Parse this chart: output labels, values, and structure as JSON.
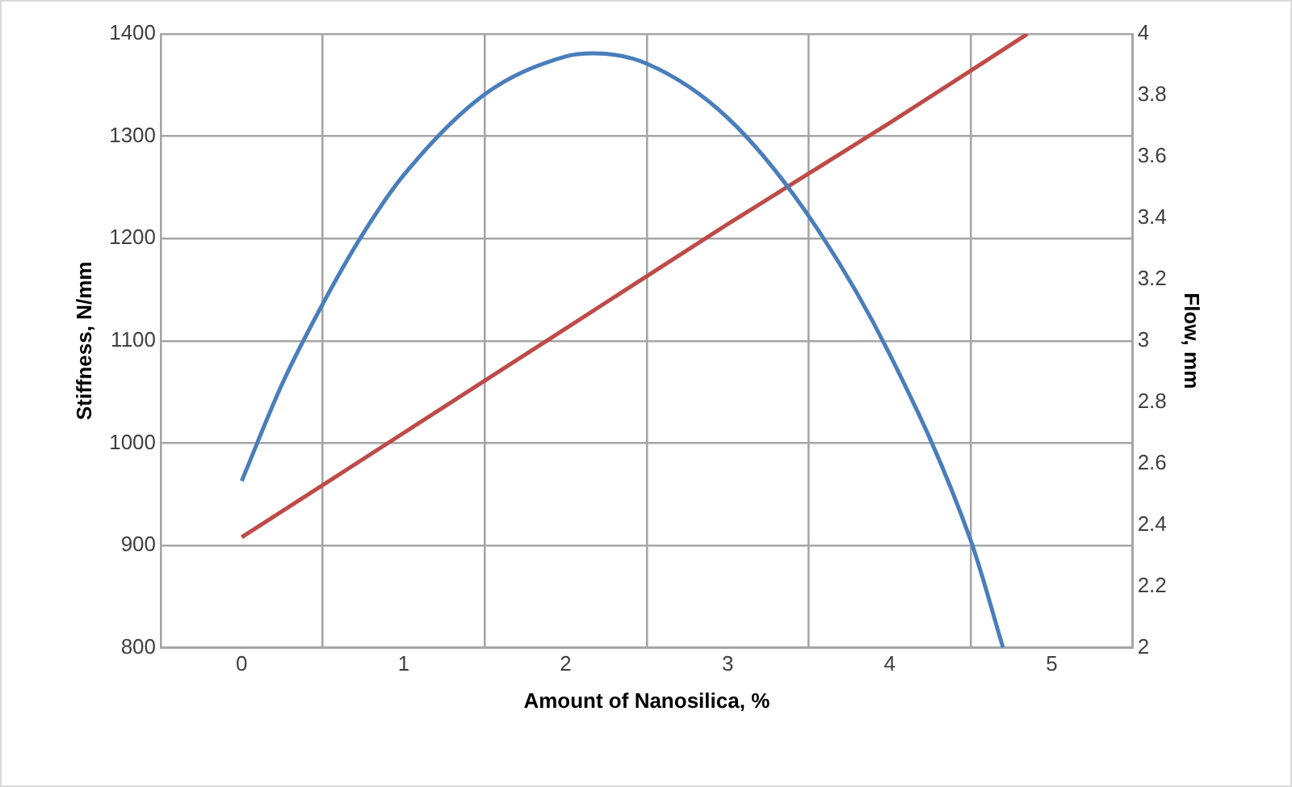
{
  "chart_data": {
    "type": "line",
    "xlabel": "Amount of Nanosilica, %",
    "ylabel": "Stiffness, N/mm",
    "y2label": "Flow, mm",
    "xlim": [
      -0.5,
      5.5
    ],
    "xticks": [
      {
        "value": -0.5,
        "label": null
      },
      0,
      {
        "value": 0.5,
        "label": null
      },
      1,
      {
        "value": 1.5,
        "label": null
      },
      2,
      {
        "value": 2.5,
        "label": null
      },
      3,
      {
        "value": 3.5,
        "label": null
      },
      4,
      {
        "value": 4.5,
        "label": null
      },
      5,
      {
        "value": 5.5,
        "label": null
      }
    ],
    "ylim": [
      800,
      1400
    ],
    "yticks": [
      800,
      900,
      1000,
      1100,
      1200,
      1300,
      1400
    ],
    "y2lim": [
      2,
      4
    ],
    "y2ticks": [
      2,
      2.2,
      2.4,
      2.6,
      2.8,
      3,
      3.2,
      3.4,
      3.6,
      3.8,
      4
    ],
    "grid": true,
    "marker": "none",
    "line_style": "solid",
    "series": [
      {
        "color": "#4a7ebb",
        "x": [
          0,
          0.25,
          0.5,
          0.75,
          1,
          1.5,
          2,
          2.17,
          2.5,
          3,
          3.5,
          4,
          4.5,
          4.7
        ],
        "values": [
          963,
          1058,
          1136,
          1205,
          1262,
          1341,
          1378,
          1381,
          1371,
          1318,
          1222,
          1087,
          905,
          800
        ]
      },
      {
        "color": "#be4b48",
        "axis": "y2",
        "x": [
          0,
          1,
          2,
          3,
          4,
          4.85
        ],
        "values": [
          2.36,
          2.7,
          3.04,
          3.38,
          3.71,
          4
        ]
      }
    ]
  }
}
